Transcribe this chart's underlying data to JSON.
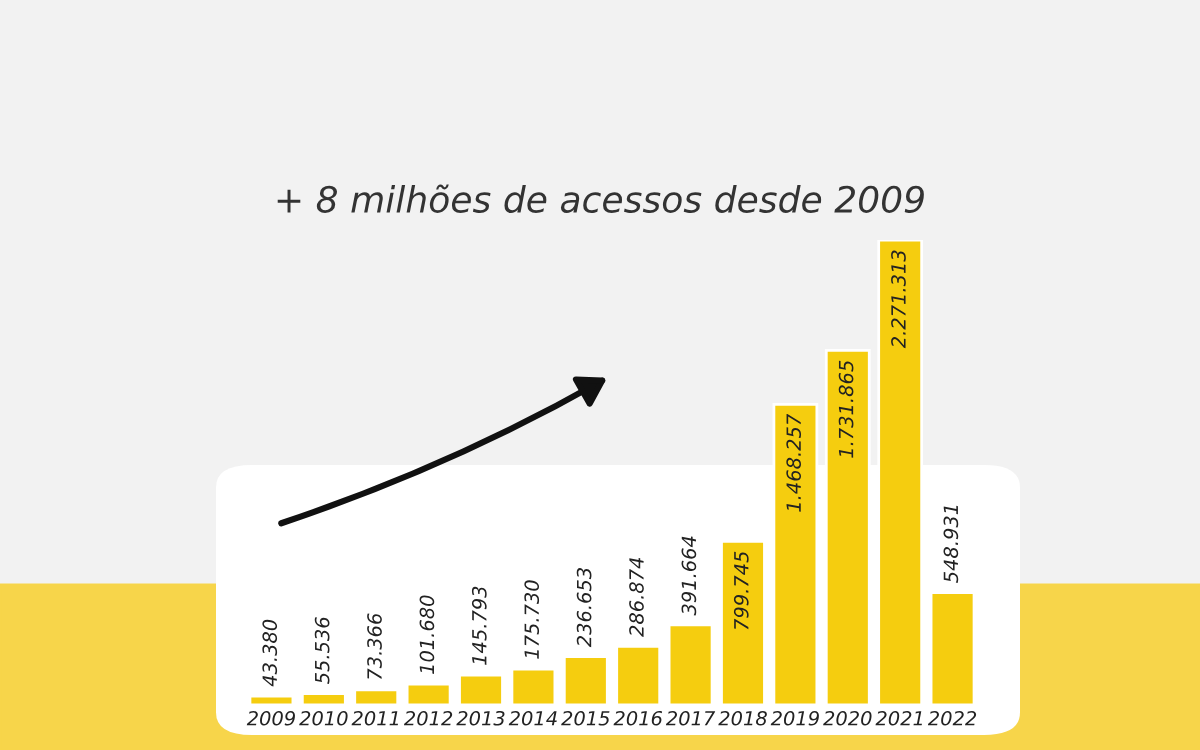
{
  "chart_data": {
    "type": "bar",
    "title": "+ 8 milhões de acessos desde 2009",
    "categories": [
      "2009",
      "2010",
      "2011",
      "2012",
      "2013",
      "2014",
      "2015",
      "2016",
      "2017",
      "2018",
      "2019",
      "2020",
      "2021",
      "2022"
    ],
    "values": [
      43380,
      55536,
      73366,
      101680,
      145793,
      175730,
      236653,
      286874,
      391664,
      799745,
      1468257,
      1731865,
      2271313,
      548931
    ],
    "value_labels": [
      "43.380",
      "55.536",
      "73.366",
      "101.680",
      "145.793",
      "175.730",
      "236.653",
      "286.874",
      "391.664",
      "799.745",
      "1.468.257",
      "1.731.865",
      "2.271.313",
      "548.931"
    ],
    "color": "#f5cd0f"
  }
}
